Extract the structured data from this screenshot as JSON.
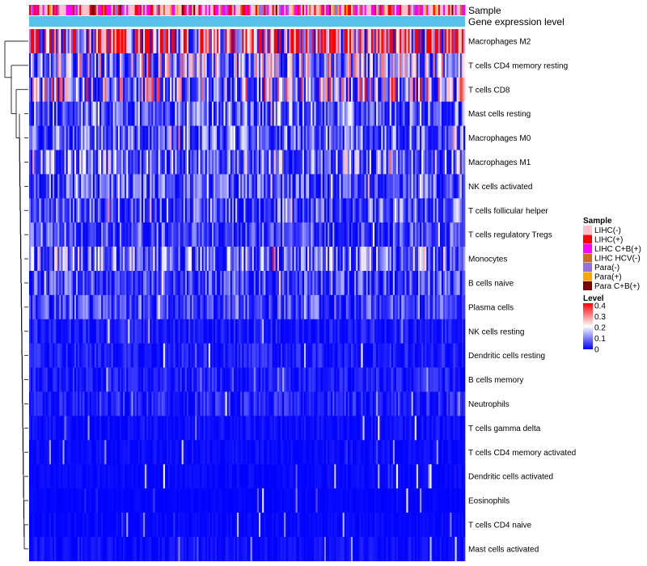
{
  "chart_data": {
    "type": "heatmap",
    "annotation_labels": [
      "Sample",
      "Gene expression level"
    ],
    "rows": [
      {
        "name": "Macrophages M2",
        "mean": 0.34
      },
      {
        "name": "T cells CD4 memory resting",
        "mean": 0.12
      },
      {
        "name": "T cells CD8",
        "mean": 0.14
      },
      {
        "name": "Mast cells resting",
        "mean": 0.07
      },
      {
        "name": "Macrophages M0",
        "mean": 0.07
      },
      {
        "name": "Macrophages M1",
        "mean": 0.09
      },
      {
        "name": "NK cells activated",
        "mean": 0.06
      },
      {
        "name": "T cells follicular helper",
        "mean": 0.06
      },
      {
        "name": "T cells regulatory  Tregs",
        "mean": 0.05
      },
      {
        "name": "Monocytes",
        "mean": 0.09
      },
      {
        "name": "B cells naive",
        "mean": 0.05
      },
      {
        "name": "Plasma cells",
        "mean": 0.05
      },
      {
        "name": "NK cells resting",
        "mean": 0.02
      },
      {
        "name": "Dendritic cells resting",
        "mean": 0.02
      },
      {
        "name": "B cells memory",
        "mean": 0.02
      },
      {
        "name": "Neutrophils",
        "mean": 0.025
      },
      {
        "name": "T cells gamma delta",
        "mean": 0.01
      },
      {
        "name": "T cells CD4 memory activated",
        "mean": 0.008
      },
      {
        "name": "Dendritic cells activated",
        "mean": 0.006
      },
      {
        "name": "Eosinophils",
        "mean": 0.003
      },
      {
        "name": "T cells CD4 naive",
        "mean": 0.006
      },
      {
        "name": "Mast cells activated",
        "mean": 0.01
      }
    ],
    "sample_legend": {
      "title": "Sample",
      "items": [
        {
          "label": "LIHC(-)",
          "color": "#ffc0cb"
        },
        {
          "label": "LIHC(+)",
          "color": "#ff0000"
        },
        {
          "label": "LIHC C+B(+)",
          "color": "#ff00ff"
        },
        {
          "label": "LIHC HCV(-)",
          "color": "#d2691e"
        },
        {
          "label": "Para(-)",
          "color": "#9370db"
        },
        {
          "label": "Para(+)",
          "color": "#ffa500"
        },
        {
          "label": "Para C+B(+)",
          "color": "#800000"
        }
      ]
    },
    "level_legend": {
      "title": "Level",
      "ticks": [
        "0.4",
        "0.3",
        "0.2",
        "0.1",
        "0"
      ],
      "range": [
        0,
        0.4
      ],
      "colors": [
        "#0000ff",
        "#ffffff",
        "#ff0000"
      ]
    },
    "gene_expression_color": "#56c1ea"
  }
}
